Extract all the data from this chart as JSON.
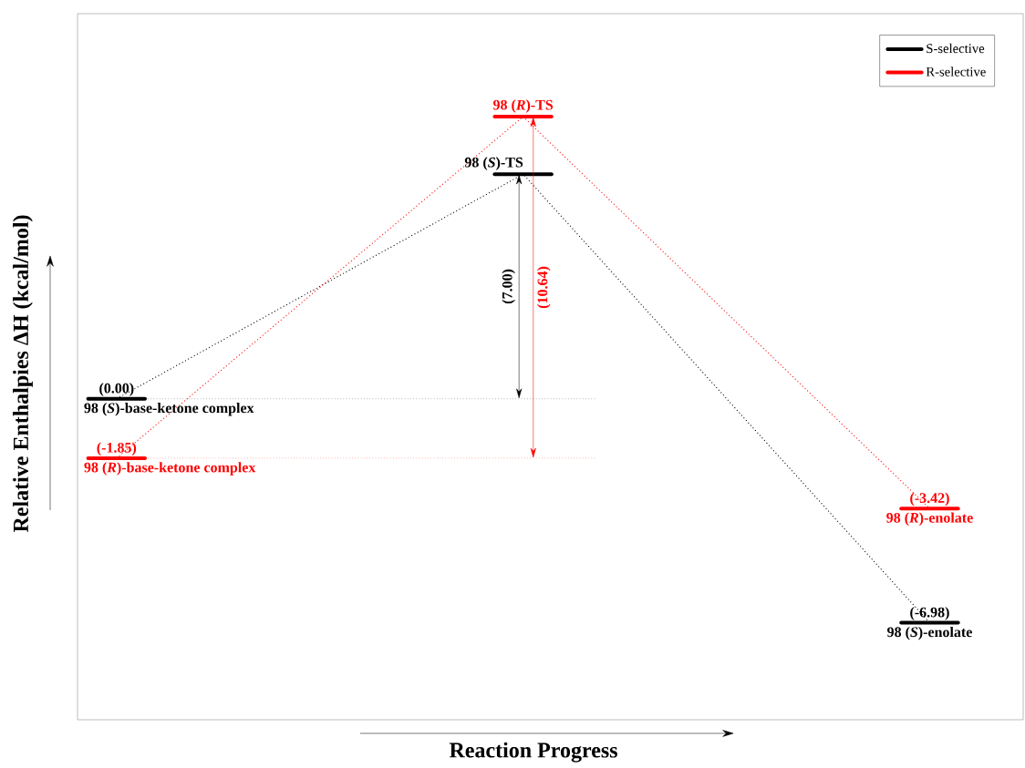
{
  "chart_data": {
    "type": "line",
    "xlabel": "Reaction Progress",
    "ylabel": "Relative Enthalpies ΔH (kcal/mol)",
    "categories": [
      null,
      null,
      null
    ],
    "series": [
      {
        "name": "S-selective",
        "color": "#000000",
        "values": [
          0.0,
          7.0,
          -6.98
        ],
        "value_labels": [
          "(0.00)",
          null,
          "(-6.98)"
        ]
      },
      {
        "name": "R-selective",
        "color": "#ff0000",
        "values": [
          -1.85,
          8.79,
          -3.42
        ],
        "value_labels": [
          "(-1.85)",
          null,
          "(-3.42)"
        ]
      }
    ],
    "ylim": [
      -10,
      12
    ],
    "legend": "top right",
    "line_style": "dotted",
    "annotations": [
      "(7.00)",
      "(10.64)",
      "98 (*S*)-base-ketone complex",
      "98 (*S*)-TS",
      "98 (*S*)-enolate",
      "98 (*R*)-base-ketone complex",
      "98 (*R*)-TS",
      "98 (*R*)-enolate"
    ]
  }
}
